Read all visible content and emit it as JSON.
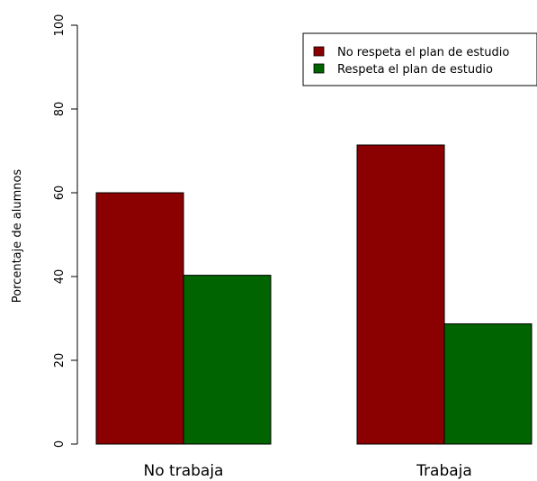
{
  "chart_data": {
    "type": "bar",
    "title": "",
    "xlabel": "",
    "ylabel": "Porcentaje de alumnos",
    "categories": [
      "No trabaja",
      "Trabaja"
    ],
    "series": [
      {
        "name": "No respeta el plan de estudio",
        "color": "#8b0000",
        "values": [
          60,
          71.4
        ]
      },
      {
        "name": "Respeta el plan de estudio",
        "color": "#006400",
        "values": [
          40.3,
          28.7
        ]
      }
    ],
    "ylim": [
      0,
      100
    ],
    "yticks": [
      "0",
      "20",
      "40",
      "60",
      "80",
      "100"
    ],
    "grid": false,
    "legend_position": "top-right"
  }
}
